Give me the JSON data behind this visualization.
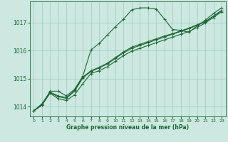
{
  "bg_color": "#cce8e0",
  "grid_color": "#99ccbb",
  "line_color": "#1a6633",
  "text_color": "#1a6633",
  "xlabel": "Graphe pression niveau de la mer (hPa)",
  "ylim": [
    1013.65,
    1017.75
  ],
  "xlim": [
    -0.5,
    23.5
  ],
  "yticks": [
    1014,
    1015,
    1016,
    1017
  ],
  "xticks": [
    0,
    1,
    2,
    3,
    4,
    5,
    6,
    7,
    8,
    9,
    10,
    11,
    12,
    13,
    14,
    15,
    16,
    17,
    18,
    19,
    20,
    21,
    22,
    23
  ],
  "series": [
    {
      "x": [
        0,
        1,
        2,
        3,
        4,
        5,
        6,
        7,
        8,
        9,
        10,
        11,
        12,
        13,
        14,
        15,
        16,
        17,
        18,
        19,
        20,
        21,
        22,
        23
      ],
      "y": [
        1013.85,
        1014.05,
        1014.55,
        1014.55,
        1014.38,
        1014.62,
        1015.08,
        1016.02,
        1016.25,
        1016.55,
        1016.85,
        1017.12,
        1017.45,
        1017.52,
        1017.52,
        1017.48,
        1017.12,
        1016.75,
        1016.72,
        1016.65,
        1016.88,
        1017.08,
        1017.32,
        1017.52
      ]
    },
    {
      "x": [
        0,
        1,
        2,
        3,
        4,
        5,
        6,
        7,
        8,
        9,
        10,
        11,
        12,
        13,
        14,
        15,
        16,
        17,
        18,
        19,
        20,
        21,
        22,
        23
      ],
      "y": [
        1013.85,
        1014.05,
        1014.48,
        1014.28,
        1014.22,
        1014.42,
        1014.82,
        1015.18,
        1015.28,
        1015.42,
        1015.62,
        1015.82,
        1015.98,
        1016.08,
        1016.18,
        1016.28,
        1016.38,
        1016.48,
        1016.58,
        1016.68,
        1016.82,
        1016.98,
        1017.18,
        1017.38
      ]
    },
    {
      "x": [
        0,
        1,
        2,
        3,
        4,
        5,
        6,
        7,
        8,
        9,
        10,
        11,
        12,
        13,
        14,
        15,
        16,
        17,
        18,
        19,
        20,
        21,
        22,
        23
      ],
      "y": [
        1013.85,
        1014.08,
        1014.5,
        1014.35,
        1014.3,
        1014.55,
        1015.02,
        1015.25,
        1015.38,
        1015.52,
        1015.72,
        1015.92,
        1016.08,
        1016.18,
        1016.28,
        1016.38,
        1016.48,
        1016.58,
        1016.68,
        1016.78,
        1016.9,
        1017.02,
        1017.22,
        1017.42
      ]
    },
    {
      "x": [
        0,
        1,
        2,
        3,
        4,
        5,
        6,
        7,
        8,
        9,
        10,
        11,
        12,
        13,
        14,
        15,
        16,
        17,
        18,
        19,
        20,
        21,
        22,
        23
      ],
      "y": [
        1013.85,
        1014.1,
        1014.52,
        1014.38,
        1014.32,
        1014.58,
        1015.05,
        1015.28,
        1015.4,
        1015.55,
        1015.75,
        1015.95,
        1016.12,
        1016.22,
        1016.32,
        1016.42,
        1016.52,
        1016.6,
        1016.7,
        1016.8,
        1016.92,
        1017.03,
        1017.23,
        1017.43
      ]
    }
  ]
}
